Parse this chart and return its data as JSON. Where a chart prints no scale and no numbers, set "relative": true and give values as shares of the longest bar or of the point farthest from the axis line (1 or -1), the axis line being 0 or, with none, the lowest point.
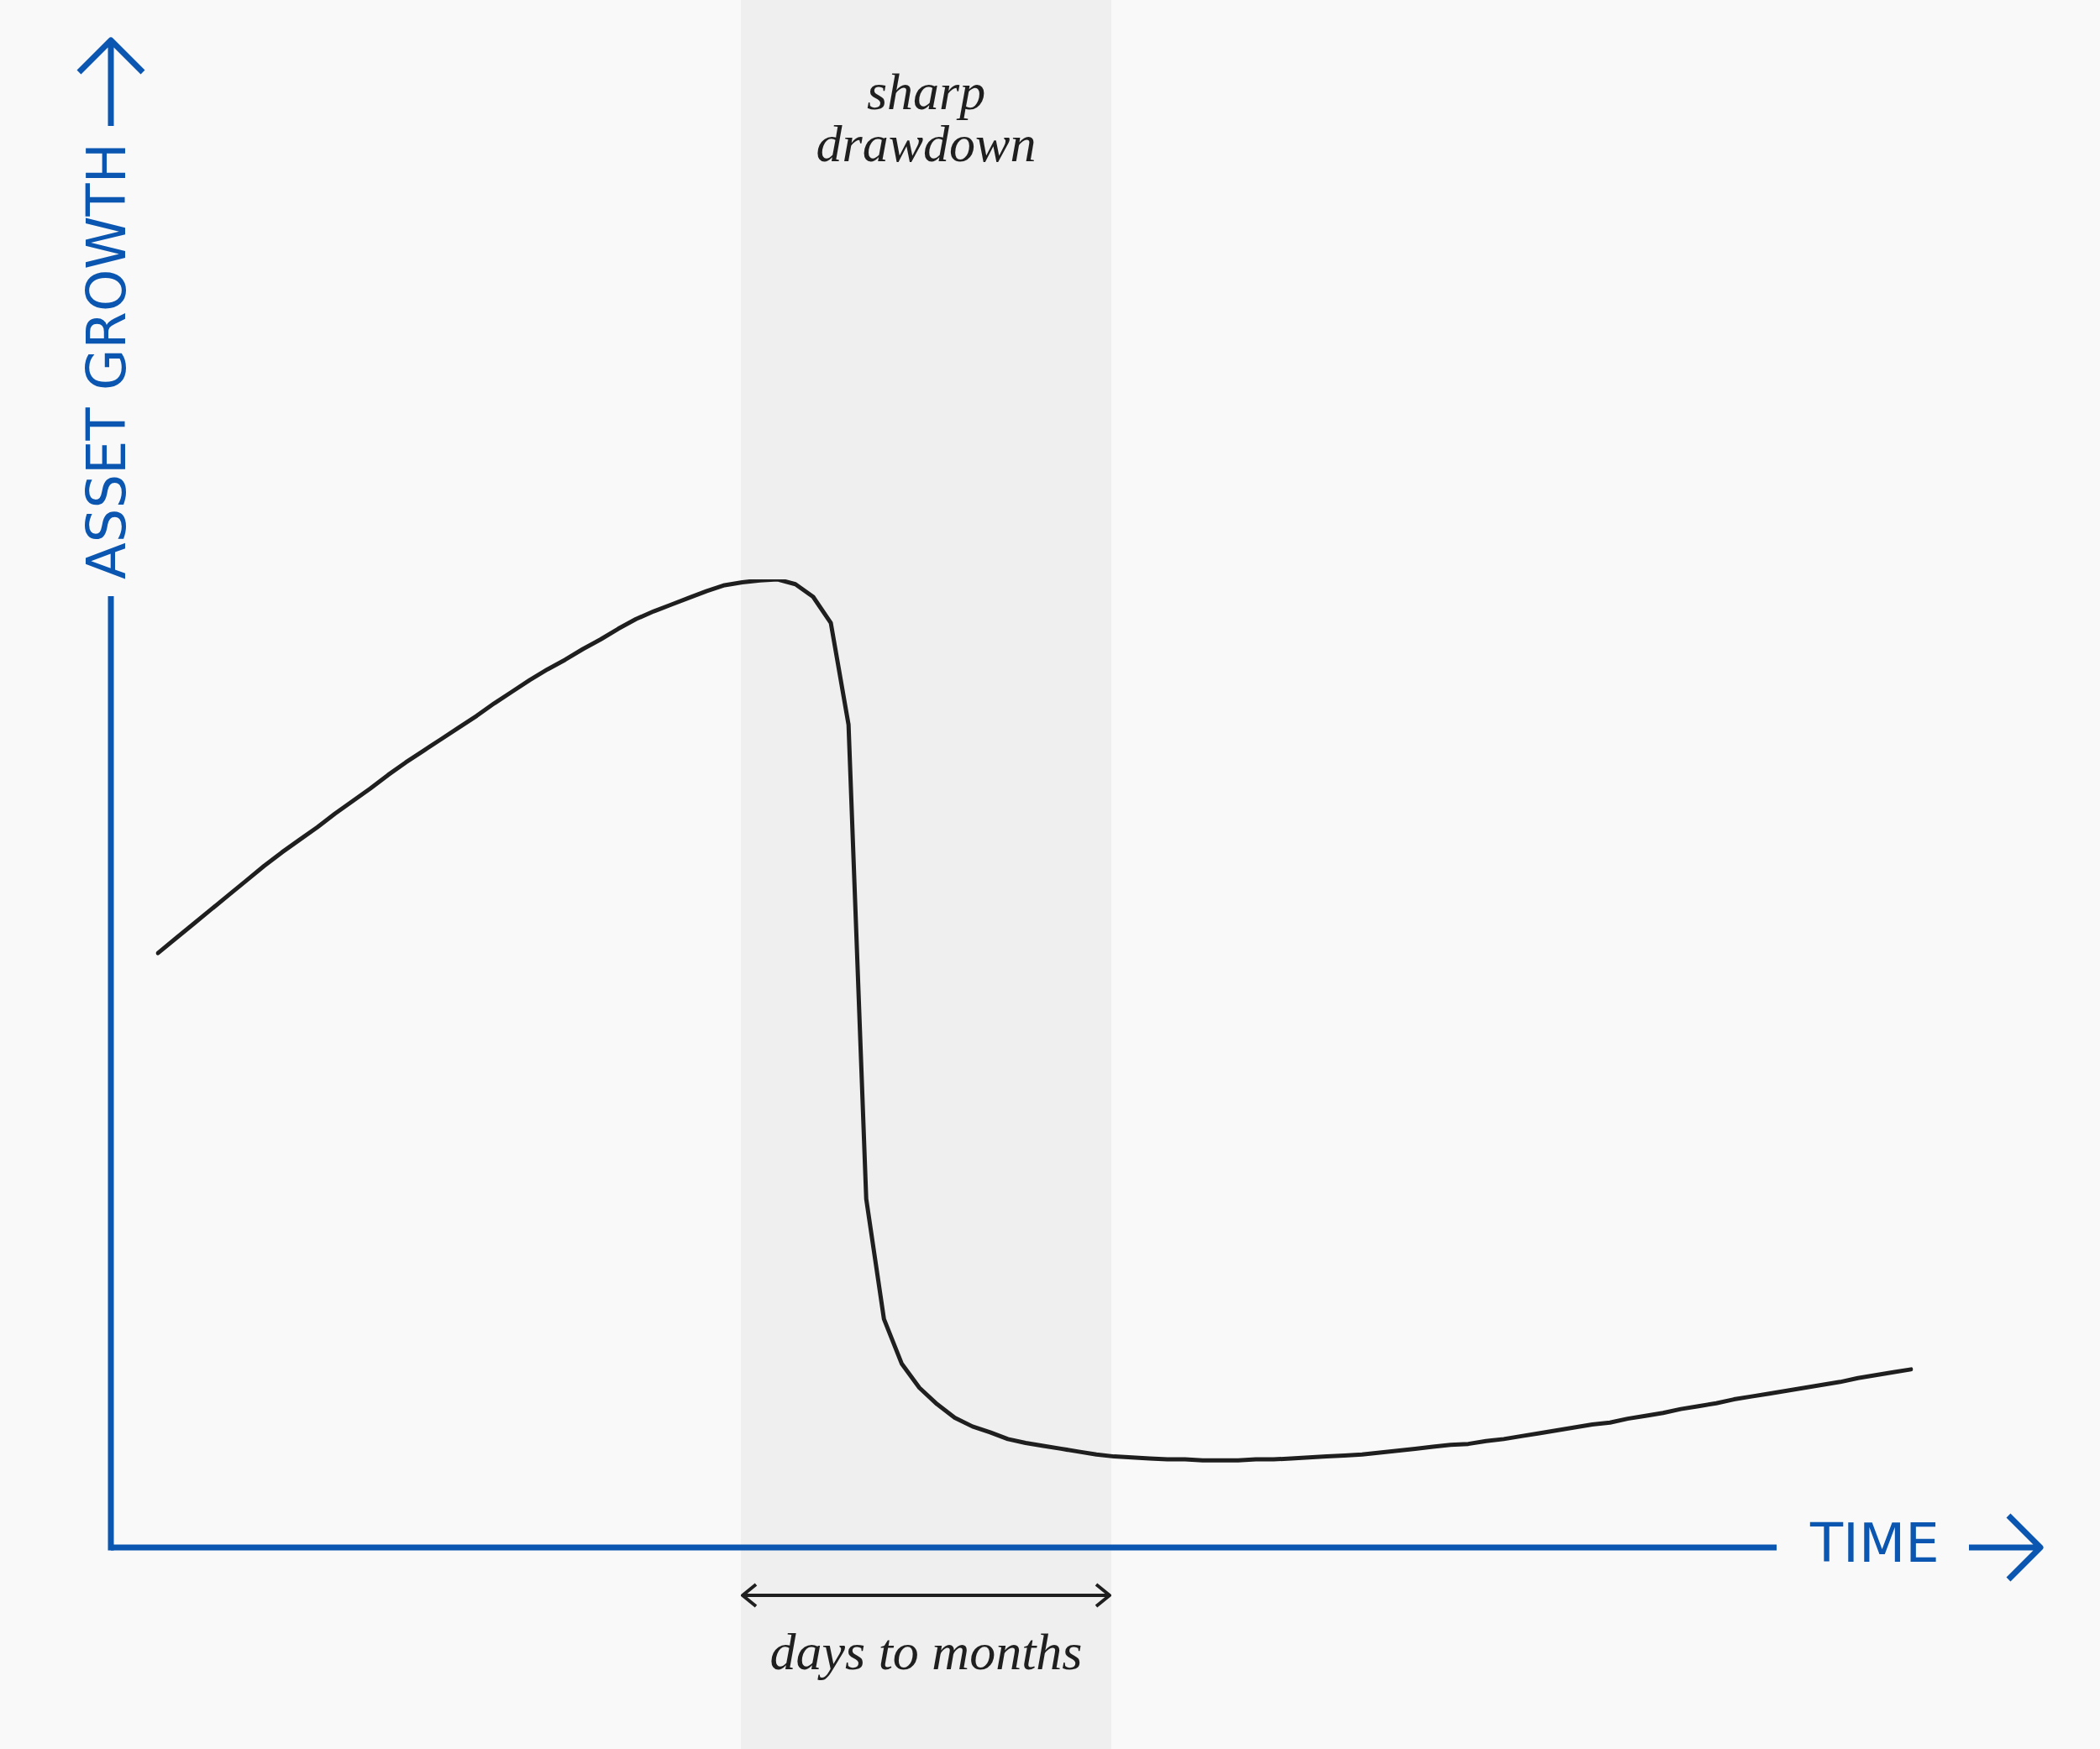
{
  "chart_data": {
    "type": "line",
    "xlabel": "TIME",
    "ylabel": "ASSET GROWTH",
    "relative": true,
    "categories": [
      null,
      null,
      null,
      null,
      null,
      null,
      null,
      null,
      null,
      null,
      null,
      null,
      null,
      null,
      null,
      null,
      null,
      null,
      null,
      null,
      null,
      null,
      null,
      null,
      null,
      null,
      null,
      null,
      null,
      null,
      null,
      null,
      null,
      null,
      null,
      null,
      null,
      null,
      null,
      null,
      null,
      null,
      null,
      null,
      null,
      null,
      null,
      null,
      null,
      null,
      null,
      null,
      null,
      null,
      null,
      null,
      null,
      null,
      null,
      null,
      null,
      null,
      null,
      null,
      null,
      null,
      null,
      null,
      null,
      null,
      null,
      null,
      null,
      null,
      null,
      null,
      null,
      null,
      null,
      null,
      null,
      null,
      null,
      null,
      null,
      null,
      null,
      null,
      null,
      null,
      null,
      null,
      null,
      null,
      null,
      null,
      null,
      null,
      null,
      null
    ],
    "series": [
      {
        "color": "#1f1f1f",
        "values": [
          0.614,
          0.629,
          0.644,
          0.659,
          0.674,
          0.689,
          0.704,
          0.718,
          0.731,
          0.744,
          0.758,
          0.771,
          0.784,
          0.798,
          0.811,
          0.823,
          0.835,
          0.847,
          0.859,
          0.872,
          0.884,
          0.896,
          0.907,
          0.917,
          0.928,
          0.938,
          0.949,
          0.959,
          0.967,
          0.974,
          0.981,
          0.988,
          0.994,
          0.997,
          0.999,
          1,
          0.995,
          0.982,
          0.955,
          0.85,
          0.36,
          0.236,
          0.19,
          0.165,
          0.148,
          0.134,
          0.125,
          0.119,
          0.112,
          0.108,
          0.105,
          0.102,
          0.099,
          0.096,
          0.094,
          0.093,
          0.092,
          0.091,
          0.091,
          0.09,
          0.09,
          0.09,
          0.091,
          0.091,
          0.092,
          0.093,
          0.094,
          0.095,
          0.096,
          0.098,
          0.1,
          0.102,
          0.104,
          0.106,
          0.107,
          0.11,
          0.112,
          0.115,
          0.118,
          0.121,
          0.124,
          0.127,
          0.129,
          0.133,
          0.136,
          0.139,
          0.143,
          0.146,
          0.149,
          0.153,
          0.156,
          0.159,
          0.162,
          0.165,
          0.168,
          0.171,
          0.175,
          0.178,
          0.181,
          0.184
        ]
      }
    ],
    "annotations": [
      "sharp drawdown",
      "days to months"
    ]
  }
}
